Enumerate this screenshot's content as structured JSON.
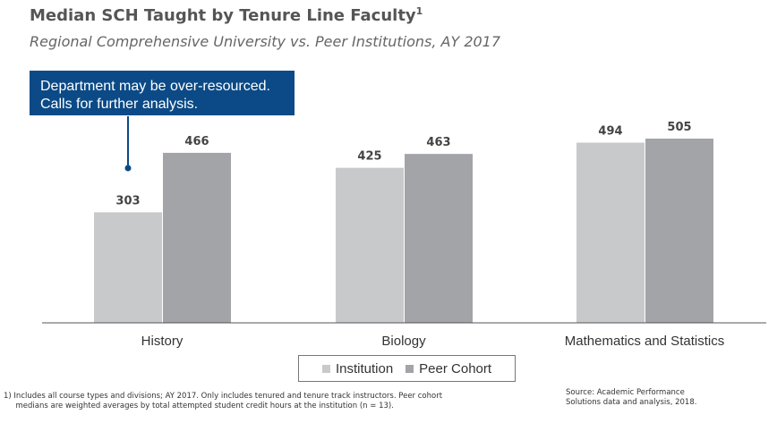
{
  "header": {
    "title": "Median SCH Taught by Tenure Line Faculty",
    "title_sup": "1",
    "subtitle": "Regional Comprehensive University vs. Peer Institutions, AY 2017"
  },
  "callout": {
    "line1": "Department may be over-resourced.",
    "line2": "Calls for further analysis.",
    "color": "#0b4a86"
  },
  "chart_data": {
    "type": "bar",
    "categories": [
      "History",
      "Biology",
      "Mathematics and Statistics"
    ],
    "series": [
      {
        "name": "Institution",
        "values": [
          303,
          425,
          494
        ],
        "color": "#c8c9cb"
      },
      {
        "name": "Peer Cohort",
        "values": [
          466,
          463,
          505
        ],
        "color": "#a2a4a8"
      }
    ],
    "title": "Median SCH Taught by Tenure Line Faculty",
    "xlabel": "",
    "ylabel": "",
    "ylim": [
      0,
      505
    ],
    "grid": false,
    "legend": "bottom-center",
    "data_labels": true
  },
  "footnote": {
    "line1": "1)  Includes all course types and divisions; AY 2017. Only includes tenured and tenure track instructors. Peer cohort",
    "line2": "     medians are weighted averages by total attempted student credit hours at the institution (n = 13)."
  },
  "source": {
    "line1": "Source: Academic Performance",
    "line2": "Solutions data and analysis, 2018."
  }
}
